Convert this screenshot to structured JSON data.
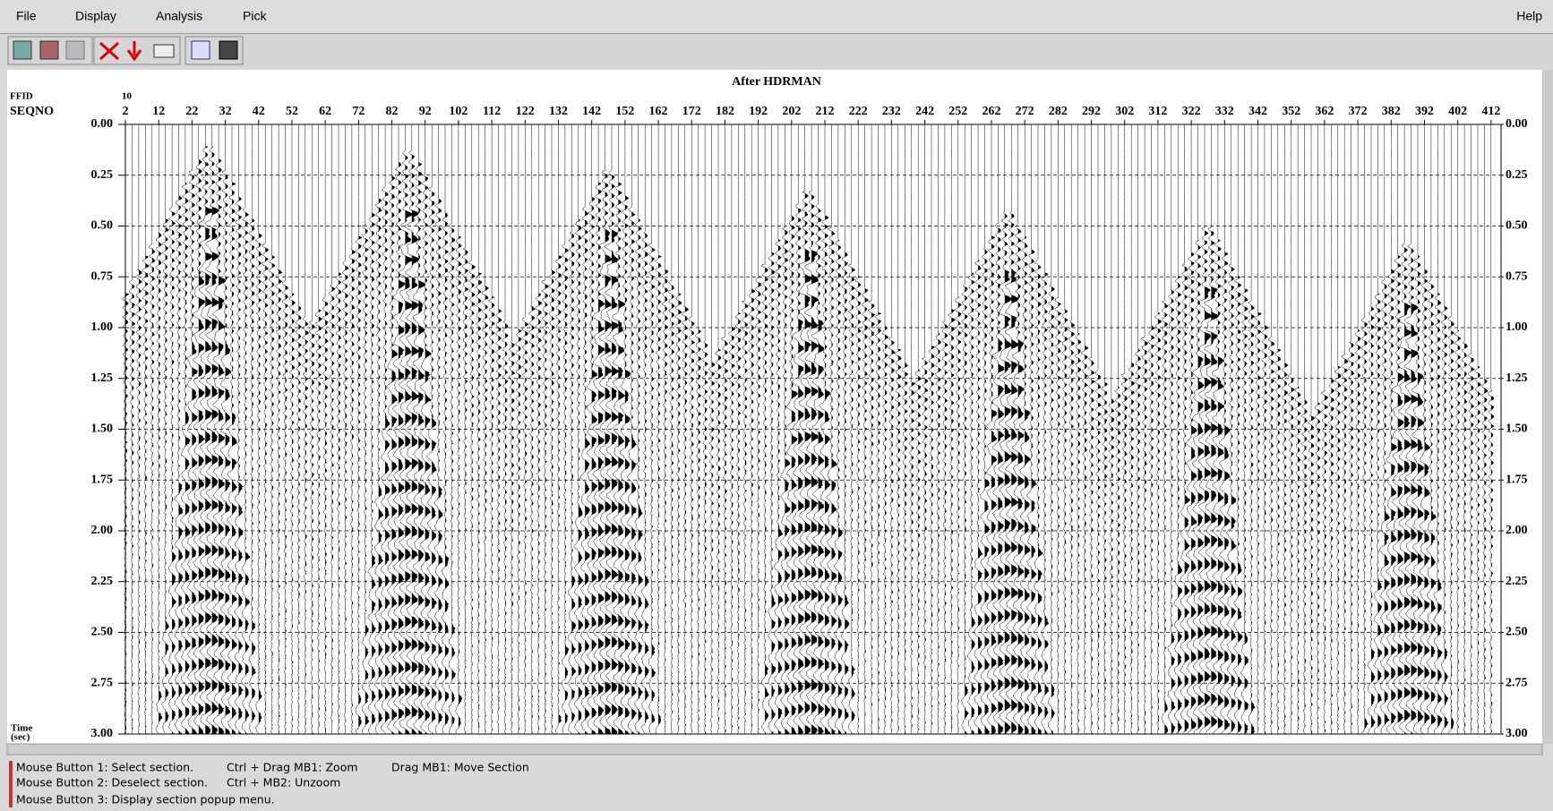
{
  "menu": [
    "File",
    "Display",
    "Analysis",
    "Pick"
  ],
  "help": "Help",
  "chart_data": {
    "type": "seismic",
    "title": "After HDRMAN",
    "ffid_label": "FFID",
    "seqno_label": "SEQNO",
    "ffid": "10",
    "xlim": [
      2,
      415
    ],
    "xticks": [
      2,
      12,
      22,
      32,
      42,
      52,
      62,
      72,
      82,
      92,
      102,
      112,
      122,
      132,
      142,
      152,
      162,
      172,
      182,
      192,
      202,
      212,
      222,
      232,
      242,
      252,
      262,
      272,
      282,
      292,
      302,
      312,
      322,
      332,
      342,
      352,
      362,
      372,
      382,
      392,
      402,
      412
    ],
    "ylim": [
      0,
      3
    ],
    "yticks": [
      {
        "value": 0,
        "label": "0.00"
      },
      {
        "value": 0.25,
        "label": "0.25"
      },
      {
        "value": 0.5,
        "label": "0.50"
      },
      {
        "value": 0.75,
        "label": "0.75"
      },
      {
        "value": 1,
        "label": "1.00"
      },
      {
        "value": 1.25,
        "label": "1.25"
      },
      {
        "value": 1.5,
        "label": "1.50"
      },
      {
        "value": 1.75,
        "label": "1.75"
      },
      {
        "value": 2,
        "label": "2.00"
      },
      {
        "value": 2.25,
        "label": "2.25"
      },
      {
        "value": 2.5,
        "label": "2.50"
      },
      {
        "value": 2.75,
        "label": "2.75"
      },
      {
        "value": 3,
        "label": "3.00"
      }
    ],
    "grid": true,
    "y_label_top": "Time",
    "y_label_bottom": "(sec)"
  },
  "status": [
    [
      "Mouse Button 1: Select section.",
      "Ctrl + Drag MB1: Zoom",
      "Drag MB1: Move Section"
    ],
    [
      "Mouse Button 2: Deselect section.",
      "Ctrl + MB2: Unzoom"
    ],
    [
      "Mouse Button 3: Display section popup menu."
    ]
  ]
}
